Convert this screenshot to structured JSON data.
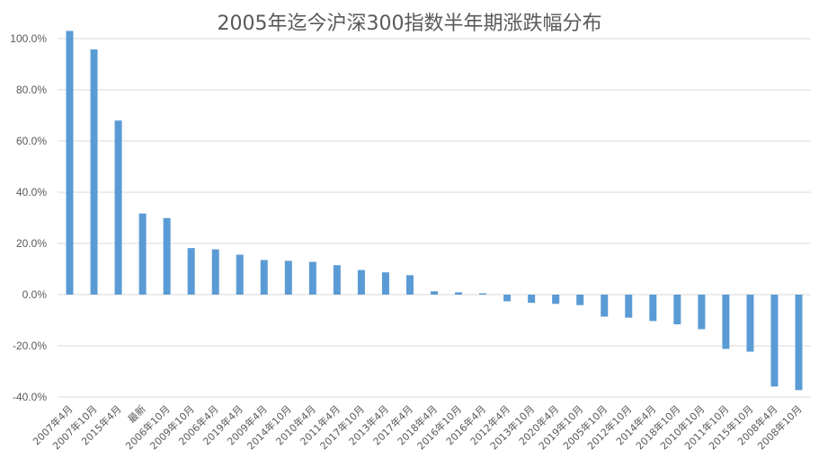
{
  "chart_data": {
    "type": "bar",
    "title": "2005年迄今沪深300指数半年期涨跌幅分布",
    "xlabel": "",
    "ylabel": "",
    "ylim": [
      -40,
      100
    ],
    "yticks": [
      -40,
      -20,
      0,
      20,
      40,
      60,
      80,
      100
    ],
    "ytick_labels": [
      "-40.0%",
      "-20.0%",
      "0.0%",
      "20.0%",
      "40.0%",
      "60.0%",
      "80.0%",
      "100.0%"
    ],
    "grid": true,
    "legend": "none",
    "color": "#5b9bd5",
    "categories": [
      "2007年4月",
      "2007年10月",
      "2015年4月",
      "最新",
      "2006年10月",
      "2009年10月",
      "2006年4月",
      "2019年4月",
      "2009年4月",
      "2014年10月",
      "2010年4月",
      "2011年4月",
      "2017年10月",
      "2013年4月",
      "2017年4月",
      "2018年4月",
      "2016年10月",
      "2016年4月",
      "2012年4月",
      "2013年10月",
      "2020年4月",
      "2019年10月",
      "2005年10月",
      "2012年10月",
      "2014年4月",
      "2018年10月",
      "2010年10月",
      "2011年10月",
      "2015年10月",
      "2008年4月",
      "2008年10月"
    ],
    "values": [
      103.0,
      95.8,
      68.0,
      31.7,
      29.9,
      18.2,
      17.7,
      15.6,
      13.5,
      13.2,
      12.8,
      11.5,
      9.6,
      8.7,
      7.6,
      1.3,
      0.9,
      0.5,
      -2.6,
      -3.2,
      -3.6,
      -4.1,
      -8.6,
      -9.0,
      -10.3,
      -11.6,
      -13.5,
      -21.2,
      -22.3,
      -35.9,
      -37.3
    ]
  }
}
